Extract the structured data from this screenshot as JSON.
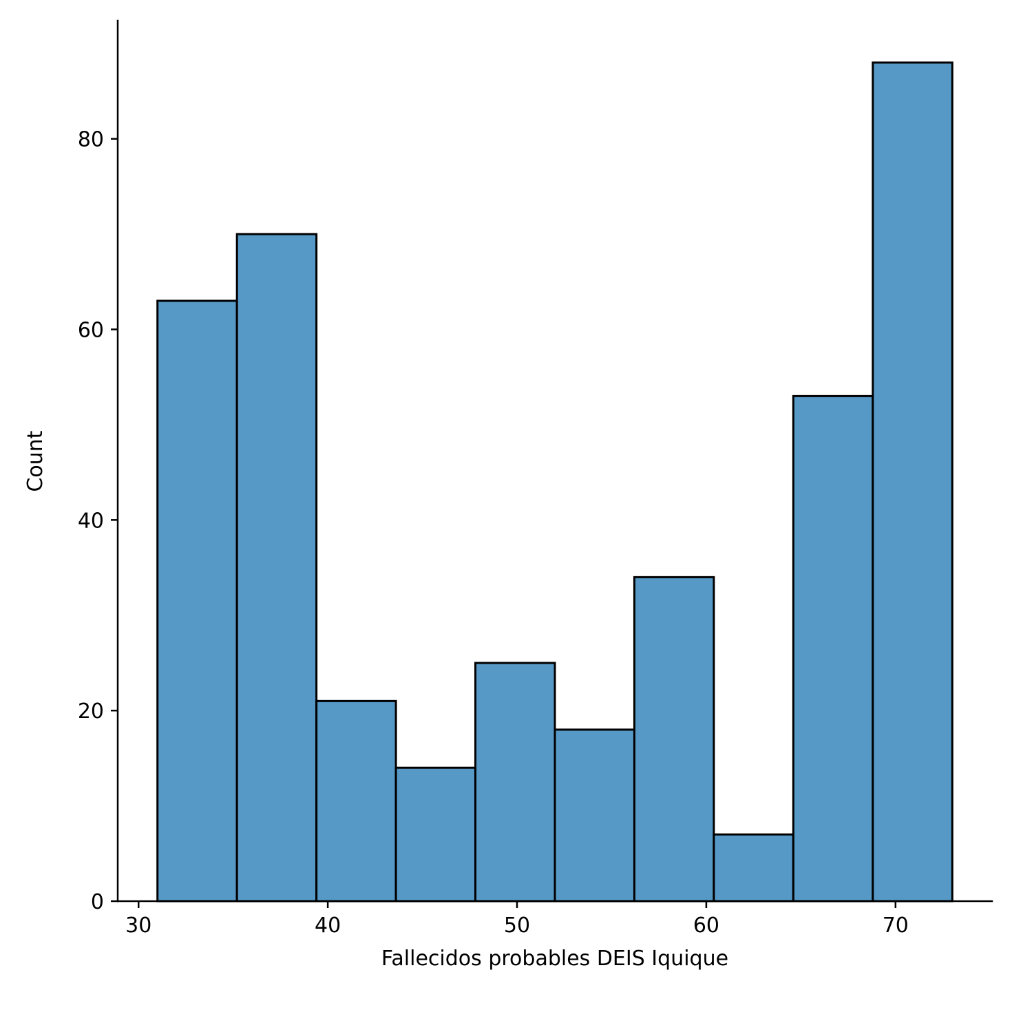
{
  "chart_data": {
    "type": "histogram",
    "xlabel": "Fallecidos probables DEIS Iquique",
    "ylabel": "Count",
    "xlim": [
      28.9,
      75.1
    ],
    "ylim": [
      0,
      92.4
    ],
    "xticks": [
      30,
      40,
      50,
      60,
      70
    ],
    "yticks": [
      0,
      20,
      40,
      60,
      80
    ],
    "bins": [
      {
        "x0": 31.0,
        "x1": 35.2,
        "count": 63
      },
      {
        "x0": 35.2,
        "x1": 39.4,
        "count": 70
      },
      {
        "x0": 39.4,
        "x1": 43.6,
        "count": 21
      },
      {
        "x0": 43.6,
        "x1": 47.8,
        "count": 14
      },
      {
        "x0": 47.8,
        "x1": 52.0,
        "count": 25
      },
      {
        "x0": 52.0,
        "x1": 56.2,
        "count": 18
      },
      {
        "x0": 56.2,
        "x1": 60.4,
        "count": 34
      },
      {
        "x0": 60.4,
        "x1": 64.6,
        "count": 7
      },
      {
        "x0": 64.6,
        "x1": 68.8,
        "count": 53
      },
      {
        "x0": 68.8,
        "x1": 73.0,
        "count": 88
      }
    ],
    "bar_color": "#5799c6",
    "edge_color": "#000000",
    "grid": false,
    "legend": "none"
  }
}
